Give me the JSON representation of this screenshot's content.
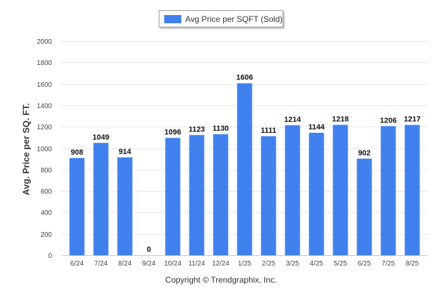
{
  "chart_data": {
    "type": "bar",
    "categories": [
      "6/24",
      "7/24",
      "8/24",
      "9/24",
      "10/24",
      "11/24",
      "12/24",
      "1/25",
      "2/25",
      "3/25",
      "4/25",
      "5/25",
      "6/25",
      "7/25",
      "8/25"
    ],
    "series": [
      {
        "name": "Avg Price per SQFT (Sold)",
        "values": [
          908,
          1049,
          914,
          0,
          1096,
          1123,
          1130,
          1606,
          1111,
          1214,
          1144,
          1218,
          902,
          1206,
          1217
        ]
      }
    ],
    "ylabel": "Avg. Price per SQ. FT.",
    "xlabel": "",
    "ylim": [
      0,
      2000
    ],
    "yticks": [
      0,
      200,
      400,
      600,
      800,
      1000,
      1200,
      1400,
      1600,
      1800,
      2000
    ],
    "grid": true,
    "legend_position": "top-center",
    "bar_color": "#4181EE"
  },
  "footer": {
    "copyright": "Copyright © Trendgraphix, Inc."
  }
}
